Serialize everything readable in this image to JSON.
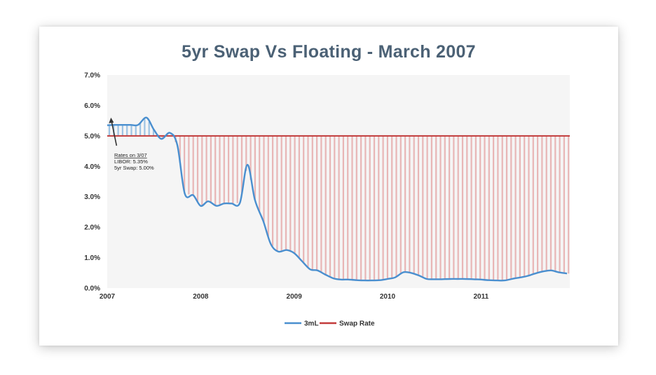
{
  "chart_data": {
    "type": "line",
    "title": "5yr Swap Vs Floating - March 2007",
    "xlabel": "",
    "ylabel": "",
    "x_ticks": [
      "2007",
      "2008",
      "2009",
      "2010",
      "2011"
    ],
    "y_ticks": [
      "0.0%",
      "1.0%",
      "2.0%",
      "3.0%",
      "4.0%",
      "5.0%",
      "6.0%",
      "7.0%"
    ],
    "xlim": [
      2007.0,
      2011.95
    ],
    "ylim": [
      0,
      7
    ],
    "grid": false,
    "legend_position": "bottom-center",
    "series": [
      {
        "name": "3mL",
        "color": "#4a8fcf",
        "x": [
          2007.0,
          2007.08,
          2007.17,
          2007.25,
          2007.33,
          2007.42,
          2007.5,
          2007.58,
          2007.67,
          2007.75,
          2007.83,
          2007.92,
          2008.0,
          2008.08,
          2008.17,
          2008.25,
          2008.33,
          2008.42,
          2008.5,
          2008.58,
          2008.67,
          2008.75,
          2008.83,
          2008.92,
          2009.0,
          2009.08,
          2009.17,
          2009.25,
          2009.33,
          2009.42,
          2009.5,
          2009.58,
          2009.67,
          2009.75,
          2009.83,
          2009.92,
          2010.0,
          2010.08,
          2010.17,
          2010.25,
          2010.33,
          2010.42,
          2010.5,
          2010.58,
          2010.67,
          2010.75,
          2010.83,
          2010.92,
          2011.0,
          2011.08,
          2011.17,
          2011.25,
          2011.33,
          2011.42,
          2011.5,
          2011.58,
          2011.67,
          2011.75,
          2011.83,
          2011.92
        ],
        "values": [
          5.35,
          5.36,
          5.36,
          5.36,
          5.36,
          5.6,
          5.2,
          4.9,
          5.1,
          4.7,
          3.1,
          3.05,
          2.7,
          2.85,
          2.7,
          2.78,
          2.78,
          2.8,
          4.05,
          2.9,
          2.2,
          1.45,
          1.2,
          1.25,
          1.15,
          0.9,
          0.62,
          0.58,
          0.45,
          0.32,
          0.28,
          0.28,
          0.26,
          0.25,
          0.25,
          0.26,
          0.3,
          0.35,
          0.52,
          0.5,
          0.42,
          0.3,
          0.29,
          0.29,
          0.3,
          0.3,
          0.3,
          0.29,
          0.28,
          0.26,
          0.25,
          0.25,
          0.3,
          0.35,
          0.4,
          0.48,
          0.55,
          0.58,
          0.52,
          0.48
        ]
      },
      {
        "name": "Swap Rate",
        "color": "#c23b3b",
        "x": [
          2007.0,
          2011.95
        ],
        "values": [
          5.0,
          5.0
        ]
      }
    ],
    "annotation": {
      "lines": [
        "Rates on 3/07",
        "LIBOR:  5.35%",
        "5yr Swap: 5.00%"
      ],
      "arrow_to": {
        "x": 2007.04,
        "y": 5.6
      }
    },
    "fill_above_color": "#9dc3e3",
    "fill_below_color": "#e8b6b6"
  }
}
